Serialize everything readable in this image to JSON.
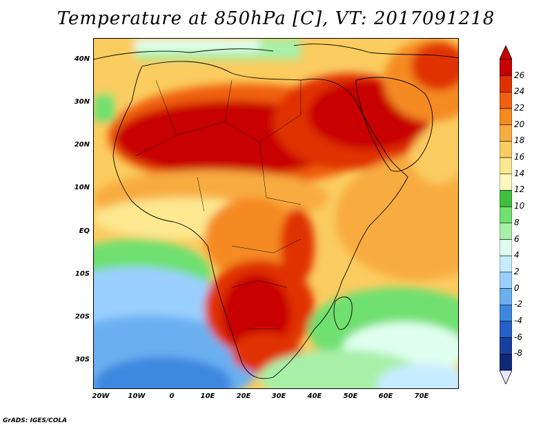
{
  "title": "Temperature at 850hPa [C], VT: 2017091218",
  "credit": "GrADS: IGES/COLA",
  "y_axis_labels": [
    "40N",
    "30N",
    "20N",
    "10N",
    "EQ",
    "10S",
    "20S",
    "30S"
  ],
  "x_axis_labels": [
    "20W",
    "10W",
    "0",
    "10E",
    "20E",
    "30E",
    "40E",
    "50E",
    "60E",
    "70E"
  ],
  "colorbar": {
    "labels": [
      "26",
      "24",
      "22",
      "20",
      "18",
      "16",
      "14",
      "12",
      "10",
      "8",
      "6",
      "4",
      "2",
      "0",
      "-2",
      "-4",
      "-6",
      "-8"
    ],
    "colors": [
      "#c80000",
      "#e03000",
      "#f06010",
      "#f58a20",
      "#f8ac40",
      "#fbcc60",
      "#fde890",
      "#fff8c0",
      "#40c040",
      "#70e070",
      "#a8f0a8",
      "#e0fff0",
      "#c8ecff",
      "#9ad0ff",
      "#6ab0f0",
      "#3c88e0",
      "#2860c8",
      "#1840a0",
      "#102878"
    ],
    "over_color": "#c80000",
    "under_color": "#e6e6ff"
  }
}
